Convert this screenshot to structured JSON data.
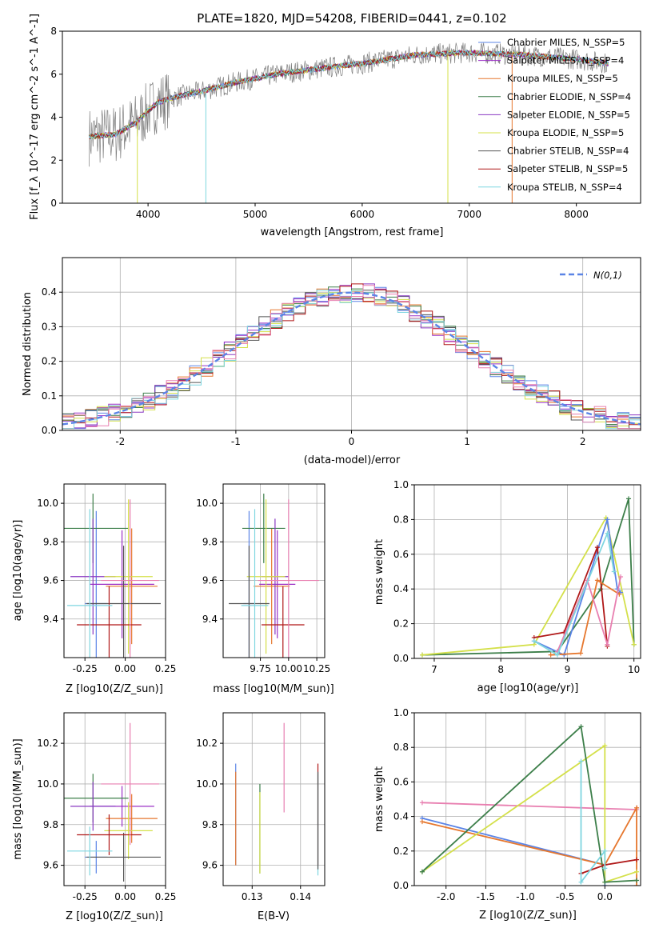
{
  "figure": {
    "title": "PLATE=1820, MJD=54208, FIBERID=0441, z=0.102"
  },
  "colors": {
    "Chabrier MILES": "#5b84e6",
    "Salpeter MILES": "#9b30c6",
    "Kroupa MILES": "#e6772e",
    "Chabrier ELODIE": "#3d7f4a",
    "Salpeter ELODIE": "#8a38c2",
    "Kroupa ELODIE": "#d4e04a",
    "Chabrier STELIB": "#555555",
    "Salpeter STELIB": "#b01818",
    "Kroupa STELIB": "#7fd6e0",
    "data_gray": "#808080",
    "pink": "#e87fb0"
  },
  "chart_data": [
    {
      "id": "spectrum",
      "type": "line",
      "xlabel": "wavelength [Angstrom, rest frame]",
      "ylabel": "Flux [f_λ 10^-17 erg cm^-2 s^-1 A^-1]",
      "xlim": [
        3200,
        8600
      ],
      "ylim": [
        0,
        8
      ],
      "xticks": [
        4000,
        5000,
        6000,
        7000,
        8000
      ],
      "yticks": [
        0,
        2,
        4,
        6,
        8
      ],
      "legend_position": "top-right",
      "legend": [
        {
          "label": "Chabrier MILES, N_SSP=5",
          "color": "#5b84e6"
        },
        {
          "label": "Salpeter MILES, N_SSP=4",
          "color": "#9b30c6"
        },
        {
          "label": "Kroupa MILES, N_SSP=5",
          "color": "#e6772e"
        },
        {
          "label": "Chabrier ELODIE, N_SSP=4",
          "color": "#3d7f4a"
        },
        {
          "label": "Salpeter ELODIE, N_SSP=5",
          "color": "#8a38c2"
        },
        {
          "label": "Kroupa ELODIE, N_SSP=5",
          "color": "#d4e04a"
        },
        {
          "label": "Chabrier STELIB, N_SSP=4",
          "color": "#555555"
        },
        {
          "label": "Salpeter STELIB, N_SSP=5",
          "color": "#b01818"
        },
        {
          "label": "Kroupa STELIB, N_SSP=4",
          "color": "#7fd6e0"
        }
      ],
      "continuum": [
        [
          3450,
          3.1
        ],
        [
          3700,
          3.2
        ],
        [
          3900,
          3.8
        ],
        [
          4000,
          4.3
        ],
        [
          4100,
          4.7
        ],
        [
          4300,
          5.0
        ],
        [
          4500,
          5.2
        ],
        [
          4800,
          5.6
        ],
        [
          5000,
          5.8
        ],
        [
          5200,
          6.0
        ],
        [
          5500,
          6.2
        ],
        [
          6000,
          6.5
        ],
        [
          6500,
          6.9
        ],
        [
          7000,
          7.0
        ],
        [
          7500,
          6.9
        ],
        [
          8000,
          6.7
        ],
        [
          8300,
          6.5
        ]
      ],
      "model_range": [
        3450,
        8300
      ]
    },
    {
      "id": "residuals",
      "type": "line",
      "xlabel": "(data-model)/error",
      "ylabel": "Normed distribution",
      "xlim": [
        -2.5,
        2.5
      ],
      "ylim": [
        0,
        0.5
      ],
      "xticks": [
        -2,
        -1,
        0,
        1,
        2
      ],
      "yticks": [
        0.0,
        0.1,
        0.2,
        0.3,
        0.4
      ],
      "legend_label": "N(0,1)",
      "legend_position": "top-right",
      "gaussian": {
        "mean": 0,
        "sigma": 1
      }
    },
    {
      "id": "age_vs_Z",
      "type": "scatter",
      "xlabel": "Z [log10(Z/Z_sun)]",
      "ylabel": "age [log10(age/yr)]",
      "xlim": [
        -0.38,
        0.25
      ],
      "ylim": [
        9.2,
        10.1
      ],
      "xticks": [
        -0.25,
        0.0,
        0.25
      ],
      "yticks": [
        9.4,
        9.6,
        9.8,
        10.0
      ],
      "points": [
        {
          "x": -0.18,
          "y": 9.48,
          "xerr": 0.07,
          "yerr": 0.48,
          "color": "#5b84e6"
        },
        {
          "x": -0.02,
          "y": 9.58,
          "xerr": 0.2,
          "yerr": 0.28,
          "color": "#9b30c6"
        },
        {
          "x": 0.04,
          "y": 9.57,
          "xerr": 0.16,
          "yerr": 0.3,
          "color": "#e6772e"
        },
        {
          "x": -0.2,
          "y": 9.87,
          "xerr": 0.22,
          "yerr": 0.18,
          "color": "#3d7f4a"
        },
        {
          "x": -0.2,
          "y": 9.62,
          "xerr": 0.14,
          "yerr": 0.3,
          "color": "#8a38c2"
        },
        {
          "x": 0.02,
          "y": 9.62,
          "xerr": 0.15,
          "yerr": 0.4,
          "color": "#d4e04a"
        },
        {
          "x": -0.01,
          "y": 9.48,
          "xerr": 0.23,
          "yerr": 0.3,
          "color": "#555555"
        },
        {
          "x": -0.1,
          "y": 9.37,
          "xerr": 0.2,
          "yerr": 0.2,
          "color": "#b01818"
        },
        {
          "x": -0.22,
          "y": 9.47,
          "xerr": 0.14,
          "yerr": 0.5,
          "color": "#7fd6e0"
        },
        {
          "x": 0.03,
          "y": 9.6,
          "xerr": 0.18,
          "yerr": 0.42,
          "color": "#e87fb0"
        }
      ]
    },
    {
      "id": "age_vs_mass",
      "type": "scatter",
      "xlabel": "mass [log10(M/M_sun)]",
      "ylabel": "",
      "xlim": [
        9.42,
        10.32
      ],
      "ylim": [
        9.2,
        10.1
      ],
      "xticks": [
        9.75,
        10.0,
        10.25
      ],
      "xticklabels": [
        "9.75",
        "10.00",
        "10.25"
      ],
      "yticks": [
        9.4,
        9.6,
        9.8,
        10.0
      ],
      "points": [
        {
          "x": 9.65,
          "y": 9.48,
          "xerr": 0.05,
          "yerr": 0.48,
          "color": "#5b84e6"
        },
        {
          "x": 9.9,
          "y": 9.58,
          "xerr": 0.16,
          "yerr": 0.28,
          "color": "#9b30c6"
        },
        {
          "x": 9.85,
          "y": 9.57,
          "xerr": 0.16,
          "yerr": 0.3,
          "color": "#e6772e"
        },
        {
          "x": 9.78,
          "y": 9.87,
          "xerr": 0.19,
          "yerr": 0.18,
          "color": "#3d7f4a"
        },
        {
          "x": 9.88,
          "y": 9.62,
          "xerr": 0.12,
          "yerr": 0.3,
          "color": "#8a38c2"
        },
        {
          "x": 9.8,
          "y": 9.62,
          "xerr": 0.17,
          "yerr": 0.4,
          "color": "#d4e04a"
        },
        {
          "x": 9.65,
          "y": 9.48,
          "xerr": 0.18,
          "yerr": 0.3,
          "color": "#555555"
        },
        {
          "x": 9.95,
          "y": 9.37,
          "xerr": 0.19,
          "yerr": 0.2,
          "color": "#b01818"
        },
        {
          "x": 9.7,
          "y": 9.47,
          "xerr": 0.12,
          "yerr": 0.5,
          "color": "#7fd6e0"
        },
        {
          "x": 10.0,
          "y": 9.6,
          "xerr": 0.27,
          "yerr": 0.42,
          "color": "#e87fb0"
        }
      ]
    },
    {
      "id": "weight_vs_age",
      "type": "line",
      "xlabel": "age [log10(age/yr)]",
      "ylabel": "mass weight",
      "xlim": [
        6.7,
        10.1
      ],
      "ylim": [
        0,
        1.0
      ],
      "xticks": [
        7,
        8,
        9,
        10
      ],
      "yticks": [
        0.0,
        0.2,
        0.4,
        0.6,
        0.8,
        1.0
      ],
      "series": [
        {
          "color": "#3d7f4a",
          "points": [
            [
              6.82,
              0.02
            ],
            [
              8.85,
              0.04
            ],
            [
              9.5,
              0.4
            ],
            [
              9.92,
              0.92
            ],
            [
              10.0,
              0.08
            ]
          ]
        },
        {
          "color": "#d4e04a",
          "points": [
            [
              6.82,
              0.02
            ],
            [
              8.5,
              0.08
            ],
            [
              9.58,
              0.81
            ],
            [
              9.7,
              0.6
            ],
            [
              10.0,
              0.08
            ]
          ]
        },
        {
          "color": "#5b84e6",
          "points": [
            [
              8.5,
              0.1
            ],
            [
              8.95,
              0.02
            ],
            [
              9.6,
              0.8
            ],
            [
              9.75,
              0.4
            ],
            [
              9.8,
              0.38
            ]
          ]
        },
        {
          "color": "#b01818",
          "points": [
            [
              8.5,
              0.12
            ],
            [
              8.95,
              0.15
            ],
            [
              9.45,
              0.64
            ],
            [
              9.6,
              0.07
            ]
          ]
        },
        {
          "color": "#e6772e",
          "points": [
            [
              8.75,
              0.02
            ],
            [
              9.2,
              0.03
            ],
            [
              9.45,
              0.45
            ],
            [
              9.78,
              0.37
            ]
          ]
        },
        {
          "color": "#e87fb0",
          "points": [
            [
              8.85,
              0.04
            ],
            [
              9.3,
              0.45
            ],
            [
              9.6,
              0.08
            ],
            [
              9.8,
              0.47
            ]
          ]
        },
        {
          "color": "#7fd6e0",
          "points": [
            [
              8.5,
              0.1
            ],
            [
              8.85,
              0.02
            ],
            [
              9.6,
              0.72
            ],
            [
              9.7,
              0.5
            ]
          ]
        }
      ]
    },
    {
      "id": "mass_vs_Z",
      "type": "scatter",
      "xlabel": "Z [log10(Z/Z_sun)]",
      "ylabel": "mass [log10(M/M_sun)]",
      "xlim": [
        -0.38,
        0.25
      ],
      "ylim": [
        9.5,
        10.35
      ],
      "xticks": [
        -0.25,
        0.0,
        0.25
      ],
      "yticks": [
        9.6,
        9.8,
        10.0,
        10.2
      ],
      "points": [
        {
          "x": -0.18,
          "y": 9.64,
          "xerr": 0.07,
          "yerr": 0.08,
          "color": "#5b84e6"
        },
        {
          "x": -0.02,
          "y": 9.89,
          "xerr": 0.2,
          "yerr": 0.1,
          "color": "#9b30c6"
        },
        {
          "x": 0.04,
          "y": 9.83,
          "xerr": 0.16,
          "yerr": 0.12,
          "color": "#e6772e"
        },
        {
          "x": -0.2,
          "y": 9.93,
          "xerr": 0.22,
          "yerr": 0.12,
          "color": "#3d7f4a"
        },
        {
          "x": -0.2,
          "y": 9.89,
          "xerr": 0.14,
          "yerr": 0.12,
          "color": "#8a38c2"
        },
        {
          "x": 0.02,
          "y": 9.77,
          "xerr": 0.15,
          "yerr": 0.14,
          "color": "#d4e04a"
        },
        {
          "x": -0.01,
          "y": 9.64,
          "xerr": 0.23,
          "yerr": 0.12,
          "color": "#555555"
        },
        {
          "x": -0.1,
          "y": 9.75,
          "xerr": 0.2,
          "yerr": 0.1,
          "color": "#b01818"
        },
        {
          "x": -0.22,
          "y": 9.67,
          "xerr": 0.14,
          "yerr": 0.12,
          "color": "#7fd6e0"
        },
        {
          "x": 0.03,
          "y": 10.0,
          "xerr": 0.18,
          "yerr": 0.3,
          "color": "#e87fb0"
        }
      ]
    },
    {
      "id": "mass_vs_ebv",
      "type": "scatter",
      "xlabel": "E(B-V)",
      "ylabel": "",
      "xlim": [
        0.124,
        0.145
      ],
      "ylim": [
        9.5,
        10.35
      ],
      "xticks": [
        0.13,
        0.14
      ],
      "yticks": [
        9.6,
        9.8,
        10.0,
        10.2
      ],
      "points": [
        {
          "x": 0.1266,
          "y": 9.85,
          "yerr": 0.25,
          "color": "#5b84e6"
        },
        {
          "x": 0.1266,
          "y": 9.83,
          "yerr": 0.23,
          "color": "#e6772e"
        },
        {
          "x": 0.1316,
          "y": 9.78,
          "yerr": 0.22,
          "color": "#3d7f4a"
        },
        {
          "x": 0.1316,
          "y": 9.76,
          "yerr": 0.2,
          "color": "#d4e04a"
        },
        {
          "x": 0.1366,
          "y": 10.08,
          "yerr": 0.22,
          "color": "#e87fb0"
        },
        {
          "x": 0.1436,
          "y": 9.85,
          "yerr": 0.25,
          "color": "#b01818"
        },
        {
          "x": 0.1436,
          "y": 9.8,
          "yerr": 0.25,
          "color": "#7fd6e0"
        },
        {
          "x": 0.1436,
          "y": 9.82,
          "yerr": 0.24,
          "color": "#555555"
        }
      ]
    },
    {
      "id": "weight_vs_Z",
      "type": "line",
      "xlabel": "Z [log10(Z/Z_sun)]",
      "ylabel": "mass weight",
      "xlim": [
        -2.4,
        0.45
      ],
      "ylim": [
        0,
        1.0
      ],
      "xticks": [
        -2.0,
        -1.5,
        -1.0,
        -0.5,
        0.0
      ],
      "yticks": [
        0.0,
        0.2,
        0.4,
        0.6,
        0.8,
        1.0
      ],
      "series": [
        {
          "color": "#e87fb0",
          "points": [
            [
              -2.3,
              0.48
            ],
            [
              0.4,
              0.44
            ],
            [
              0.4,
              0.45
            ]
          ]
        },
        {
          "color": "#5b84e6",
          "points": [
            [
              -2.3,
              0.39
            ],
            [
              0.0,
              0.12
            ],
            [
              0.0,
              0.0
            ]
          ]
        },
        {
          "color": "#e6772e",
          "points": [
            [
              -2.3,
              0.37
            ],
            [
              0.0,
              0.12
            ],
            [
              0.4,
              0.45
            ],
            [
              0.4,
              0.0
            ]
          ]
        },
        {
          "color": "#d4e04a",
          "points": [
            [
              -2.3,
              0.08
            ],
            [
              0.0,
              0.81
            ],
            [
              0.0,
              0.02
            ],
            [
              0.4,
              0.08
            ]
          ]
        },
        {
          "color": "#3d7f4a",
          "points": [
            [
              -2.3,
              0.08
            ],
            [
              -0.3,
              0.92
            ],
            [
              0.0,
              0.02
            ],
            [
              0.4,
              0.03
            ]
          ]
        },
        {
          "color": "#b01818",
          "points": [
            [
              -0.3,
              0.07
            ],
            [
              0.0,
              0.12
            ],
            [
              0.4,
              0.15
            ]
          ]
        },
        {
          "color": "#7fd6e0",
          "points": [
            [
              -0.3,
              0.72
            ],
            [
              -0.3,
              0.02
            ],
            [
              0.0,
              0.2
            ],
            [
              0.0,
              0.1
            ]
          ]
        }
      ]
    }
  ]
}
